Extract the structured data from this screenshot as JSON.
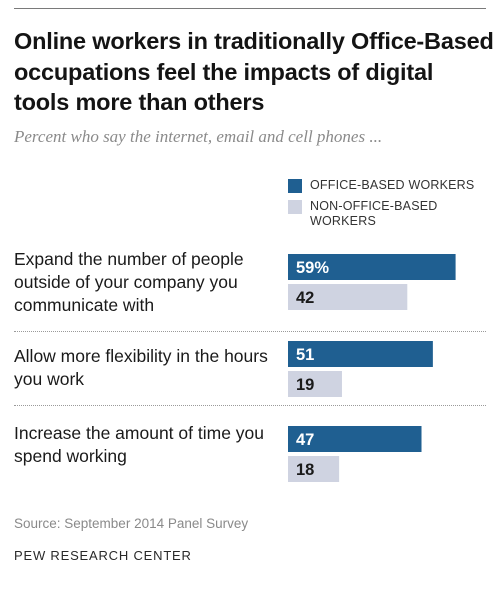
{
  "chart_data": {
    "type": "bar",
    "orientation": "horizontal",
    "title": "Online workers in traditionally Office-Based occupations feel the impacts of digital tools more than others",
    "subtitle": "Percent who say the internet, email and cell phones ...",
    "categories": [
      "Expand the number of people outside of your company you communicate with",
      "Allow more flexibility in the hours you work",
      "Increase the amount of time you spend working"
    ],
    "series": [
      {
        "name": "OFFICE-BASED WORKERS",
        "values": [
          59,
          51,
          47
        ],
        "value_labels": [
          "59%",
          "51",
          "47"
        ],
        "color": "#1f5f91",
        "label_color": "#ffffff"
      },
      {
        "name": "NON-OFFICE-BASED WORKERS",
        "values": [
          42,
          19,
          18
        ],
        "value_labels": [
          "42",
          "19",
          "18"
        ],
        "color": "#cfd3e1",
        "label_color": "#1a1a1a"
      }
    ],
    "legend_position": "top-right",
    "grid": false,
    "xlim": [
      0,
      69
    ]
  },
  "footer": {
    "source": "Source: September 2014 Panel Survey",
    "org": "PEW RESEARCH CENTER"
  }
}
